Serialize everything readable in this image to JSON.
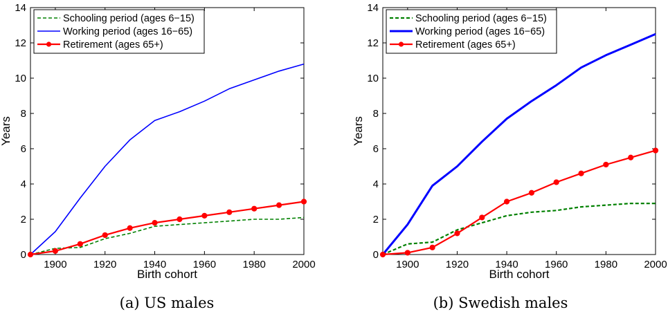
{
  "figures": [
    {
      "caption": "(a) US males",
      "chart_data": {
        "type": "line",
        "xlabel": "Birth cohort",
        "ylabel": "Years",
        "xlim": [
          1890,
          2000
        ],
        "ylim": [
          0,
          14
        ],
        "xticks": [
          1900,
          1920,
          1940,
          1960,
          1980,
          2000
        ],
        "yticks": [
          0,
          2,
          4,
          6,
          8,
          10,
          12,
          14
        ],
        "grid": false,
        "legend_position": "top-left",
        "x": [
          1890,
          1900,
          1910,
          1920,
          1930,
          1940,
          1950,
          1960,
          1970,
          1980,
          1990,
          2000
        ],
        "series": [
          {
            "name": "Schooling period (ages 6−15)",
            "color": "#008000",
            "style": "dashed",
            "markers": false,
            "line_width": "thin",
            "values": [
              0,
              0.35,
              0.4,
              0.9,
              1.2,
              1.6,
              1.7,
              1.8,
              1.9,
              2.0,
              2.0,
              2.1
            ]
          },
          {
            "name": "Working period (ages 16−65)",
            "color": "#0000ff",
            "style": "solid",
            "markers": false,
            "line_width": "thin",
            "values": [
              0,
              1.3,
              3.2,
              5.0,
              6.5,
              7.6,
              8.1,
              8.7,
              9.4,
              9.9,
              10.4,
              10.8
            ]
          },
          {
            "name": "Retirement (ages 65+)",
            "color": "#ff0000",
            "style": "solid",
            "markers": true,
            "line_width": "medium",
            "values": [
              0,
              0.2,
              0.6,
              1.1,
              1.5,
              1.8,
              2.0,
              2.2,
              2.4,
              2.6,
              2.8,
              3.0
            ]
          }
        ]
      }
    },
    {
      "caption": "(b) Swedish males",
      "chart_data": {
        "type": "line",
        "xlabel": "Birth cohort",
        "ylabel": "Years",
        "xlim": [
          1890,
          2000
        ],
        "ylim": [
          0,
          14
        ],
        "xticks": [
          1900,
          1920,
          1940,
          1960,
          1980,
          2000
        ],
        "yticks": [
          0,
          2,
          4,
          6,
          8,
          10,
          12,
          14
        ],
        "grid": false,
        "legend_position": "top-left",
        "x": [
          1890,
          1900,
          1910,
          1920,
          1930,
          1940,
          1950,
          1960,
          1970,
          1980,
          1990,
          2000
        ],
        "series": [
          {
            "name": "Schooling period (ages 6−15)",
            "color": "#008000",
            "style": "dashed",
            "markers": false,
            "line_width": "medium",
            "values": [
              0,
              0.6,
              0.7,
              1.4,
              1.8,
              2.2,
              2.4,
              2.5,
              2.7,
              2.8,
              2.9,
              2.9
            ]
          },
          {
            "name": "Working period (ages 16−65)",
            "color": "#0000ff",
            "style": "solid",
            "markers": false,
            "line_width": "thick",
            "values": [
              0,
              1.7,
              3.9,
              5.0,
              6.4,
              7.7,
              8.7,
              9.6,
              10.6,
              11.3,
              11.9,
              12.5
            ]
          },
          {
            "name": "Retirement (ages 65+)",
            "color": "#ff0000",
            "style": "solid",
            "markers": true,
            "line_width": "medium",
            "values": [
              0,
              0.1,
              0.4,
              1.2,
              2.1,
              3.0,
              3.5,
              4.1,
              4.6,
              5.1,
              5.5,
              5.9
            ]
          }
        ]
      }
    }
  ]
}
